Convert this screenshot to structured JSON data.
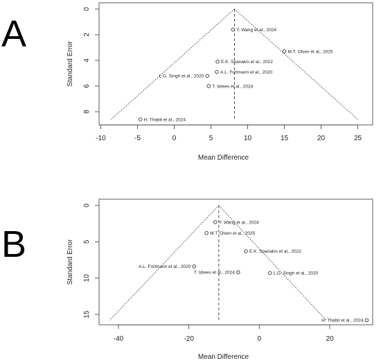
{
  "panels": [
    {
      "letter": "A",
      "chart_data": {
        "type": "scatter",
        "subtype": "funnel-plot",
        "xlabel": "Mean Difference",
        "ylabel": "Standard Error",
        "xlim": [
          -10,
          25
        ],
        "ylim": [
          0,
          8.6
        ],
        "y_reversed": true,
        "xticks": [
          -10,
          -5,
          0,
          5,
          10,
          15,
          20,
          25
        ],
        "yticks": [
          0,
          2,
          4,
          6,
          8
        ],
        "pooled_estimate": 8.2,
        "funnel_base": [
          -8.6,
          25
        ],
        "points": [
          {
            "label": "Y. Wang et al., 2024",
            "x": 8.0,
            "y": 1.6
          },
          {
            "label": "M.T. Olsen et al., 2025",
            "x": 15.0,
            "y": 3.3
          },
          {
            "label": "E.K. Spanakis et al., 2022",
            "x": 5.9,
            "y": 4.1
          },
          {
            "label": "A.L. Fortmann et al., 2020",
            "x": 5.8,
            "y": 4.9
          },
          {
            "label": "L.G. Singh et al., 2020",
            "x": 4.5,
            "y": 5.2
          },
          {
            "label": "T. Idrees et al., 2024",
            "x": 4.7,
            "y": 6.0
          },
          {
            "label": "H. Thabit et al., 2024",
            "x": -4.6,
            "y": 8.6
          }
        ]
      }
    },
    {
      "letter": "B",
      "chart_data": {
        "type": "scatter",
        "subtype": "funnel-plot",
        "xlabel": "Mean Difference",
        "ylabel": "Standard Error",
        "xlim": [
          -40,
          30
        ],
        "ylim": [
          0,
          15.8
        ],
        "y_reversed": true,
        "xticks": [
          -40,
          -20,
          0,
          20
        ],
        "yticks": [
          0,
          5,
          10,
          15
        ],
        "pooled_estimate": -11.5,
        "funnel_base": [
          -42.5,
          19
        ],
        "points": [
          {
            "label": "Y. Wang et al., 2024",
            "x": -12.5,
            "y": 2.3
          },
          {
            "label": "M.T. Olsen et al., 2025",
            "x": -15.0,
            "y": 3.8
          },
          {
            "label": "E.K. Spanakis et al., 2022",
            "x": -3.8,
            "y": 6.3
          },
          {
            "label": "A.L. Fortmann et al., 2020",
            "x": -18.5,
            "y": 8.4
          },
          {
            "label": "T. Idrees et al., 2024",
            "x": -6.0,
            "y": 9.2
          },
          {
            "label": "L.G. Singh et al., 2020",
            "x": 3.0,
            "y": 9.3
          },
          {
            "label": "H. Thabit et al., 2024",
            "x": 30.5,
            "y": 15.8
          }
        ]
      }
    }
  ]
}
